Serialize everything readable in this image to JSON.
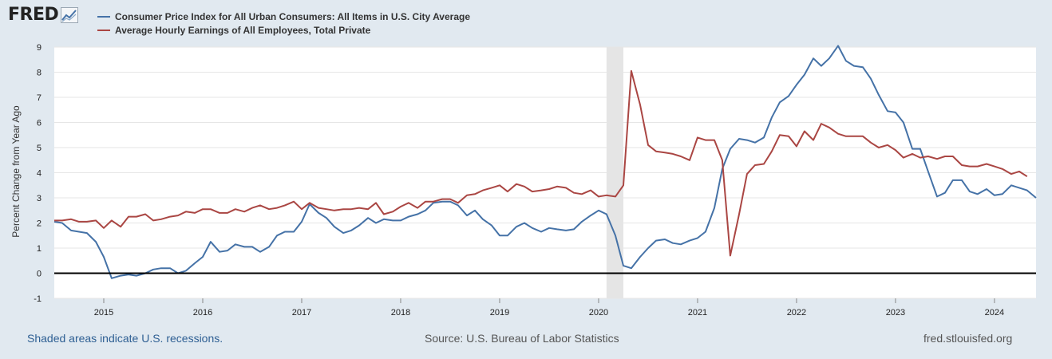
{
  "header": {
    "logo_text": "FRED",
    "logo_icon": "trend-chart-icon"
  },
  "legend": [
    {
      "label": "Consumer Price Index for All Urban Consumers: All Items in U.S. City Average",
      "color": "#4572a7"
    },
    {
      "label": "Average Hourly Earnings of All Employees, Total Private",
      "color": "#aa4643"
    }
  ],
  "footer": {
    "recession_note": "Shaded areas indicate U.S. recessions.",
    "source": "Source: U.S. Bureau of Labor Statistics",
    "site": "fred.stlouisfed.org"
  },
  "chart_data": {
    "type": "line",
    "title": "",
    "xlabel": "",
    "ylabel": "Percent Change from Year Ago",
    "x_range": [
      2014.5,
      2024.42
    ],
    "ylim": [
      -1,
      9
    ],
    "y_ticks": [
      -1,
      0,
      1,
      2,
      3,
      4,
      5,
      6,
      7,
      8,
      9
    ],
    "x_ticks": [
      2015,
      2016,
      2017,
      2018,
      2019,
      2020,
      2021,
      2022,
      2023,
      2024
    ],
    "recession": [
      2020.08,
      2020.25
    ],
    "zero_line": 0,
    "series": [
      {
        "name": "Consumer Price Index for All Urban Consumers: All Items in U.S. City Average",
        "color": "#4572a7",
        "points": [
          [
            2014.5,
            2.05
          ],
          [
            2014.58,
            2.0
          ],
          [
            2014.67,
            1.7
          ],
          [
            2014.75,
            1.65
          ],
          [
            2014.83,
            1.6
          ],
          [
            2014.92,
            1.25
          ],
          [
            2015.0,
            0.65
          ],
          [
            2015.08,
            -0.2
          ],
          [
            2015.17,
            -0.1
          ],
          [
            2015.25,
            -0.05
          ],
          [
            2015.33,
            -0.1
          ],
          [
            2015.42,
            0.0
          ],
          [
            2015.5,
            0.15
          ],
          [
            2015.58,
            0.2
          ],
          [
            2015.67,
            0.2
          ],
          [
            2015.75,
            0.0
          ],
          [
            2015.83,
            0.1
          ],
          [
            2015.92,
            0.4
          ],
          [
            2016.0,
            0.65
          ],
          [
            2016.08,
            1.25
          ],
          [
            2016.17,
            0.85
          ],
          [
            2016.25,
            0.9
          ],
          [
            2016.33,
            1.15
          ],
          [
            2016.42,
            1.05
          ],
          [
            2016.5,
            1.05
          ],
          [
            2016.58,
            0.85
          ],
          [
            2016.67,
            1.05
          ],
          [
            2016.75,
            1.5
          ],
          [
            2016.83,
            1.65
          ],
          [
            2016.92,
            1.65
          ],
          [
            2017.0,
            2.05
          ],
          [
            2017.08,
            2.75
          ],
          [
            2017.17,
            2.4
          ],
          [
            2017.25,
            2.2
          ],
          [
            2017.33,
            1.85
          ],
          [
            2017.42,
            1.6
          ],
          [
            2017.5,
            1.7
          ],
          [
            2017.58,
            1.9
          ],
          [
            2017.67,
            2.2
          ],
          [
            2017.75,
            2.0
          ],
          [
            2017.83,
            2.15
          ],
          [
            2017.92,
            2.1
          ],
          [
            2018.0,
            2.1
          ],
          [
            2018.08,
            2.25
          ],
          [
            2018.17,
            2.35
          ],
          [
            2018.25,
            2.5
          ],
          [
            2018.33,
            2.8
          ],
          [
            2018.42,
            2.85
          ],
          [
            2018.5,
            2.85
          ],
          [
            2018.58,
            2.7
          ],
          [
            2018.67,
            2.3
          ],
          [
            2018.75,
            2.5
          ],
          [
            2018.83,
            2.15
          ],
          [
            2018.92,
            1.9
          ],
          [
            2019.0,
            1.5
          ],
          [
            2019.08,
            1.5
          ],
          [
            2019.17,
            1.85
          ],
          [
            2019.25,
            2.0
          ],
          [
            2019.33,
            1.8
          ],
          [
            2019.42,
            1.65
          ],
          [
            2019.5,
            1.8
          ],
          [
            2019.58,
            1.75
          ],
          [
            2019.67,
            1.7
          ],
          [
            2019.75,
            1.75
          ],
          [
            2019.83,
            2.05
          ],
          [
            2019.92,
            2.3
          ],
          [
            2020.0,
            2.5
          ],
          [
            2020.08,
            2.35
          ],
          [
            2020.17,
            1.5
          ],
          [
            2020.25,
            0.3
          ],
          [
            2020.33,
            0.2
          ],
          [
            2020.42,
            0.65
          ],
          [
            2020.5,
            1.0
          ],
          [
            2020.58,
            1.3
          ],
          [
            2020.67,
            1.35
          ],
          [
            2020.75,
            1.2
          ],
          [
            2020.83,
            1.15
          ],
          [
            2020.92,
            1.3
          ],
          [
            2021.0,
            1.4
          ],
          [
            2021.08,
            1.65
          ],
          [
            2021.17,
            2.6
          ],
          [
            2021.25,
            4.15
          ],
          [
            2021.33,
            4.95
          ],
          [
            2021.42,
            5.35
          ],
          [
            2021.5,
            5.3
          ],
          [
            2021.58,
            5.2
          ],
          [
            2021.67,
            5.4
          ],
          [
            2021.75,
            6.2
          ],
          [
            2021.83,
            6.8
          ],
          [
            2021.92,
            7.05
          ],
          [
            2022.0,
            7.5
          ],
          [
            2022.08,
            7.9
          ],
          [
            2022.17,
            8.55
          ],
          [
            2022.25,
            8.25
          ],
          [
            2022.33,
            8.55
          ],
          [
            2022.42,
            9.05
          ],
          [
            2022.5,
            8.45
          ],
          [
            2022.58,
            8.25
          ],
          [
            2022.67,
            8.2
          ],
          [
            2022.75,
            7.75
          ],
          [
            2022.83,
            7.1
          ],
          [
            2022.92,
            6.45
          ],
          [
            2023.0,
            6.4
          ],
          [
            2023.08,
            6.0
          ],
          [
            2023.17,
            4.95
          ],
          [
            2023.25,
            4.95
          ],
          [
            2023.33,
            4.05
          ],
          [
            2023.42,
            3.05
          ],
          [
            2023.5,
            3.2
          ],
          [
            2023.58,
            3.7
          ],
          [
            2023.67,
            3.7
          ],
          [
            2023.75,
            3.25
          ],
          [
            2023.83,
            3.15
          ],
          [
            2023.92,
            3.35
          ],
          [
            2024.0,
            3.1
          ],
          [
            2024.08,
            3.15
          ],
          [
            2024.17,
            3.5
          ],
          [
            2024.25,
            3.4
          ],
          [
            2024.33,
            3.3
          ],
          [
            2024.42,
            3.0
          ]
        ]
      },
      {
        "name": "Average Hourly Earnings of All Employees, Total Private",
        "color": "#aa4643",
        "points": [
          [
            2014.5,
            2.1
          ],
          [
            2014.58,
            2.1
          ],
          [
            2014.67,
            2.15
          ],
          [
            2014.75,
            2.05
          ],
          [
            2014.83,
            2.05
          ],
          [
            2014.92,
            2.1
          ],
          [
            2015.0,
            1.8
          ],
          [
            2015.08,
            2.1
          ],
          [
            2015.17,
            1.85
          ],
          [
            2015.25,
            2.25
          ],
          [
            2015.33,
            2.25
          ],
          [
            2015.42,
            2.35
          ],
          [
            2015.5,
            2.1
          ],
          [
            2015.58,
            2.15
          ],
          [
            2015.67,
            2.25
          ],
          [
            2015.75,
            2.3
          ],
          [
            2015.83,
            2.45
          ],
          [
            2015.92,
            2.4
          ],
          [
            2016.0,
            2.55
          ],
          [
            2016.08,
            2.55
          ],
          [
            2016.17,
            2.4
          ],
          [
            2016.25,
            2.4
          ],
          [
            2016.33,
            2.55
          ],
          [
            2016.42,
            2.45
          ],
          [
            2016.5,
            2.6
          ],
          [
            2016.58,
            2.7
          ],
          [
            2016.67,
            2.55
          ],
          [
            2016.75,
            2.6
          ],
          [
            2016.83,
            2.7
          ],
          [
            2016.92,
            2.85
          ],
          [
            2017.0,
            2.55
          ],
          [
            2017.08,
            2.8
          ],
          [
            2017.17,
            2.6
          ],
          [
            2017.25,
            2.55
          ],
          [
            2017.33,
            2.5
          ],
          [
            2017.42,
            2.55
          ],
          [
            2017.5,
            2.55
          ],
          [
            2017.58,
            2.6
          ],
          [
            2017.67,
            2.55
          ],
          [
            2017.75,
            2.8
          ],
          [
            2017.83,
            2.35
          ],
          [
            2017.92,
            2.45
          ],
          [
            2018.0,
            2.65
          ],
          [
            2018.08,
            2.8
          ],
          [
            2018.17,
            2.6
          ],
          [
            2018.25,
            2.85
          ],
          [
            2018.33,
            2.85
          ],
          [
            2018.42,
            2.95
          ],
          [
            2018.5,
            2.95
          ],
          [
            2018.58,
            2.8
          ],
          [
            2018.67,
            3.1
          ],
          [
            2018.75,
            3.15
          ],
          [
            2018.83,
            3.3
          ],
          [
            2018.92,
            3.4
          ],
          [
            2019.0,
            3.5
          ],
          [
            2019.08,
            3.25
          ],
          [
            2019.17,
            3.55
          ],
          [
            2019.25,
            3.45
          ],
          [
            2019.33,
            3.25
          ],
          [
            2019.42,
            3.3
          ],
          [
            2019.5,
            3.35
          ],
          [
            2019.58,
            3.45
          ],
          [
            2019.67,
            3.4
          ],
          [
            2019.75,
            3.2
          ],
          [
            2019.83,
            3.15
          ],
          [
            2019.92,
            3.3
          ],
          [
            2020.0,
            3.05
          ],
          [
            2020.08,
            3.1
          ],
          [
            2020.17,
            3.05
          ],
          [
            2020.25,
            3.5
          ],
          [
            2020.33,
            8.05
          ],
          [
            2020.42,
            6.7
          ],
          [
            2020.5,
            5.1
          ],
          [
            2020.58,
            4.85
          ],
          [
            2020.67,
            4.8
          ],
          [
            2020.75,
            4.75
          ],
          [
            2020.83,
            4.65
          ],
          [
            2020.92,
            4.5
          ],
          [
            2021.0,
            5.4
          ],
          [
            2021.08,
            5.3
          ],
          [
            2021.17,
            5.3
          ],
          [
            2021.25,
            4.5
          ],
          [
            2021.33,
            0.7
          ],
          [
            2021.42,
            2.35
          ],
          [
            2021.5,
            3.95
          ],
          [
            2021.58,
            4.3
          ],
          [
            2021.67,
            4.35
          ],
          [
            2021.75,
            4.85
          ],
          [
            2021.83,
            5.5
          ],
          [
            2021.92,
            5.45
          ],
          [
            2022.0,
            5.05
          ],
          [
            2022.08,
            5.65
          ],
          [
            2022.17,
            5.3
          ],
          [
            2022.25,
            5.95
          ],
          [
            2022.33,
            5.8
          ],
          [
            2022.42,
            5.55
          ],
          [
            2022.5,
            5.45
          ],
          [
            2022.58,
            5.45
          ],
          [
            2022.67,
            5.45
          ],
          [
            2022.75,
            5.2
          ],
          [
            2022.83,
            5.0
          ],
          [
            2022.92,
            5.1
          ],
          [
            2023.0,
            4.9
          ],
          [
            2023.08,
            4.6
          ],
          [
            2023.17,
            4.75
          ],
          [
            2023.25,
            4.6
          ],
          [
            2023.33,
            4.65
          ],
          [
            2023.42,
            4.55
          ],
          [
            2023.5,
            4.65
          ],
          [
            2023.58,
            4.65
          ],
          [
            2023.67,
            4.3
          ],
          [
            2023.75,
            4.25
          ],
          [
            2023.83,
            4.25
          ],
          [
            2023.92,
            4.35
          ],
          [
            2024.0,
            4.25
          ],
          [
            2024.08,
            4.15
          ],
          [
            2024.17,
            3.95
          ],
          [
            2024.25,
            4.05
          ],
          [
            2024.33,
            3.85
          ]
        ]
      }
    ]
  }
}
